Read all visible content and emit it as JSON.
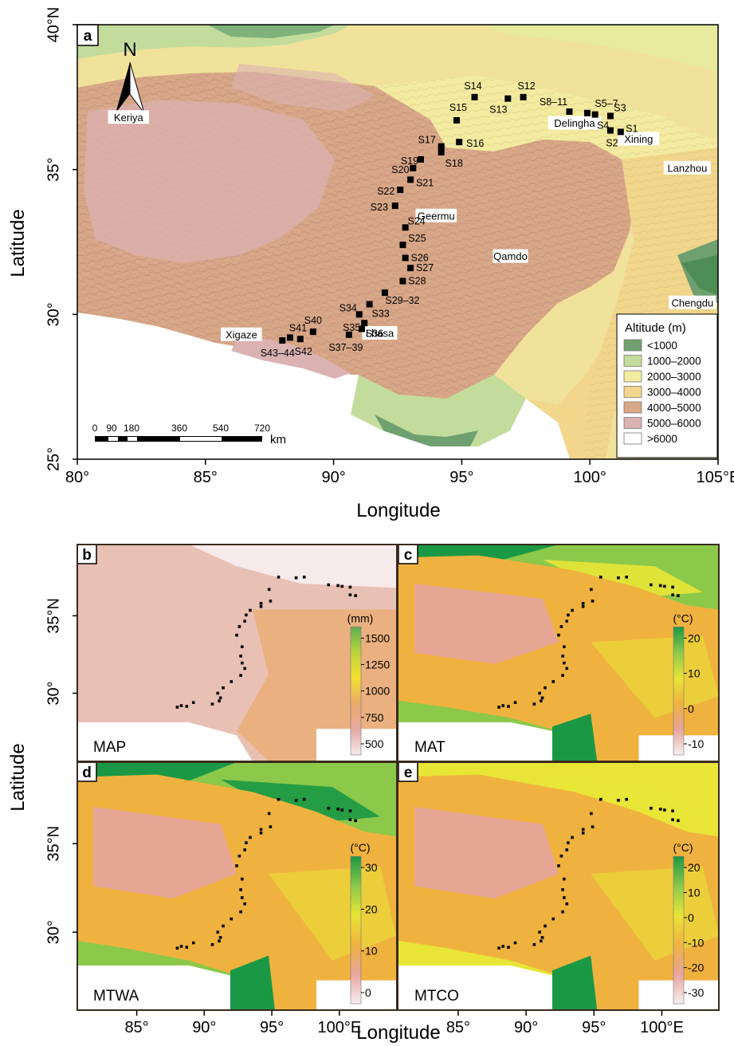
{
  "panel_a": {
    "label": "a",
    "north": "N",
    "lat_ticks": [
      {
        "v": 40,
        "t": "40°N"
      },
      {
        "v": 35,
        "t": "35°"
      },
      {
        "v": 30,
        "t": "30°"
      },
      {
        "v": 25,
        "t": "25°"
      }
    ],
    "lon_ticks": [
      {
        "v": 80,
        "t": "80°"
      },
      {
        "v": 85,
        "t": "85°"
      },
      {
        "v": 90,
        "t": "90°"
      },
      {
        "v": 95,
        "t": "95°"
      },
      {
        "v": 100,
        "t": "100°"
      },
      {
        "v": 105,
        "t": "105°E"
      }
    ],
    "xlabel": "Longitude",
    "ylabel": "Latitude",
    "scalebar": {
      "ticks": [
        "0",
        "90",
        "180",
        "360",
        "540",
        "720"
      ],
      "unit": "km"
    },
    "legend": {
      "title": "Altitude (m)",
      "items": [
        {
          "label": "<1000",
          "color": "#6fa070"
        },
        {
          "label": "1000–2000",
          "color": "#c3dc9c"
        },
        {
          "label": "2000–3000",
          "color": "#f2eba0"
        },
        {
          "label": "3000–4000",
          "color": "#f1d68c"
        },
        {
          "label": "4000–5000",
          "color": "#d9a888"
        },
        {
          "label": "5000–6000",
          "color": "#dbb2b2"
        },
        {
          "label": ">6000",
          "color": "#ffffff"
        }
      ]
    },
    "cities": [
      {
        "name": "Keriya",
        "lon": 82.0,
        "lat": 36.8
      },
      {
        "name": "Delingha",
        "lon": 99.4,
        "lat": 36.6
      },
      {
        "name": "Xining",
        "lon": 101.9,
        "lat": 36.05
      },
      {
        "name": "Lanzhou",
        "lon": 103.8,
        "lat": 35.05
      },
      {
        "name": "Geermu",
        "lon": 94.0,
        "lat": 33.4
      },
      {
        "name": "Qamdo",
        "lon": 96.9,
        "lat": 32.0
      },
      {
        "name": "Chengdu",
        "lon": 104.0,
        "lat": 30.4
      },
      {
        "name": "Lhasa",
        "lon": 91.8,
        "lat": 29.35
      },
      {
        "name": "Xigaze",
        "lon": 86.4,
        "lat": 29.3
      }
    ],
    "sites": [
      {
        "name": "S1",
        "lon": 101.2,
        "lat": 36.3
      },
      {
        "name": "S2",
        "lon": 100.8,
        "lat": 36.35
      },
      {
        "name": "S3",
        "lon": 100.8,
        "lat": 36.85
      },
      {
        "name": "S4",
        "lon": 100.2,
        "lat": 36.9
      },
      {
        "name": "S5–7",
        "lon": 99.9,
        "lat": 36.95
      },
      {
        "name": "S8–11",
        "lon": 99.2,
        "lat": 37.0
      },
      {
        "name": "S12",
        "lon": 97.4,
        "lat": 37.5
      },
      {
        "name": "S13",
        "lon": 96.8,
        "lat": 37.45
      },
      {
        "name": "S14",
        "lon": 95.5,
        "lat": 37.5
      },
      {
        "name": "S15",
        "lon": 94.8,
        "lat": 36.7
      },
      {
        "name": "S16",
        "lon": 94.9,
        "lat": 35.95
      },
      {
        "name": "S17",
        "lon": 94.2,
        "lat": 35.8
      },
      {
        "name": "S18",
        "lon": 94.2,
        "lat": 35.6
      },
      {
        "name": "S19",
        "lon": 93.4,
        "lat": 35.35
      },
      {
        "name": "S20",
        "lon": 93.1,
        "lat": 35.05
      },
      {
        "name": "S21",
        "lon": 93.0,
        "lat": 34.65
      },
      {
        "name": "S22",
        "lon": 92.6,
        "lat": 34.3
      },
      {
        "name": "S23",
        "lon": 92.4,
        "lat": 33.75
      },
      {
        "name": "S24",
        "lon": 92.8,
        "lat": 33.0
      },
      {
        "name": "S25",
        "lon": 92.7,
        "lat": 32.4
      },
      {
        "name": "S26",
        "lon": 92.8,
        "lat": 31.95
      },
      {
        "name": "S27",
        "lon": 93.0,
        "lat": 31.6
      },
      {
        "name": "S28",
        "lon": 92.7,
        "lat": 31.15
      },
      {
        "name": "S29–32",
        "lon": 92.0,
        "lat": 30.75
      },
      {
        "name": "S33",
        "lon": 91.4,
        "lat": 30.35
      },
      {
        "name": "S34",
        "lon": 91.0,
        "lat": 30.0
      },
      {
        "name": "S35",
        "lon": 91.2,
        "lat": 29.7
      },
      {
        "name": "S36",
        "lon": 91.1,
        "lat": 29.5
      },
      {
        "name": "S37–39",
        "lon": 90.6,
        "lat": 29.3
      },
      {
        "name": "S40",
        "lon": 89.2,
        "lat": 29.4
      },
      {
        "name": "S41",
        "lon": 88.3,
        "lat": 29.2
      },
      {
        "name": "S42",
        "lon": 88.7,
        "lat": 29.15
      },
      {
        "name": "S43–44",
        "lon": 88.0,
        "lat": 29.1
      }
    ]
  },
  "small_maps": {
    "lat_ticks": [
      {
        "v": 35,
        "t": "35°N"
      },
      {
        "v": 30,
        "t": "30°"
      }
    ],
    "lon_ticks": [
      {
        "v": 85,
        "t": "85°"
      },
      {
        "v": 90,
        "t": "90°"
      },
      {
        "v": 95,
        "t": "95°"
      },
      {
        "v": 100,
        "t": "100°E"
      }
    ],
    "xlabel": "Longitude",
    "ylabel": "Latitude",
    "panels": [
      {
        "label": "b",
        "variable": "MAP",
        "unit": "(mm)",
        "ticks": [
          "1500",
          "1250",
          "1000",
          "750",
          "500"
        ],
        "colors": [
          "#5fae55",
          "#bcd43a",
          "#f2e02f",
          "#eaa96a",
          "#e6a9a4",
          "#f6eaea"
        ]
      },
      {
        "label": "c",
        "variable": "MAT",
        "unit": "(°C)",
        "ticks": [
          "20",
          "10",
          "0",
          "-10"
        ],
        "colors": [
          "#1a9845",
          "#8cc84a",
          "#e8e536",
          "#f0b23f",
          "#e7a59e",
          "#f5efef"
        ]
      },
      {
        "label": "d",
        "variable": "MTWA",
        "unit": "(°C)",
        "ticks": [
          "30",
          "20",
          "10",
          "0"
        ],
        "colors": [
          "#1a9845",
          "#8cc84a",
          "#e8e536",
          "#f0b23f",
          "#e7a59e",
          "#f5efef"
        ]
      },
      {
        "label": "e",
        "variable": "MTCO",
        "unit": "(°C)",
        "ticks": [
          "20",
          "10",
          "0",
          "-10",
          "-20",
          "-30"
        ],
        "colors": [
          "#1a9845",
          "#8cc84a",
          "#e8e536",
          "#f0b23f",
          "#e7a59e",
          "#f5efef"
        ]
      }
    ]
  }
}
